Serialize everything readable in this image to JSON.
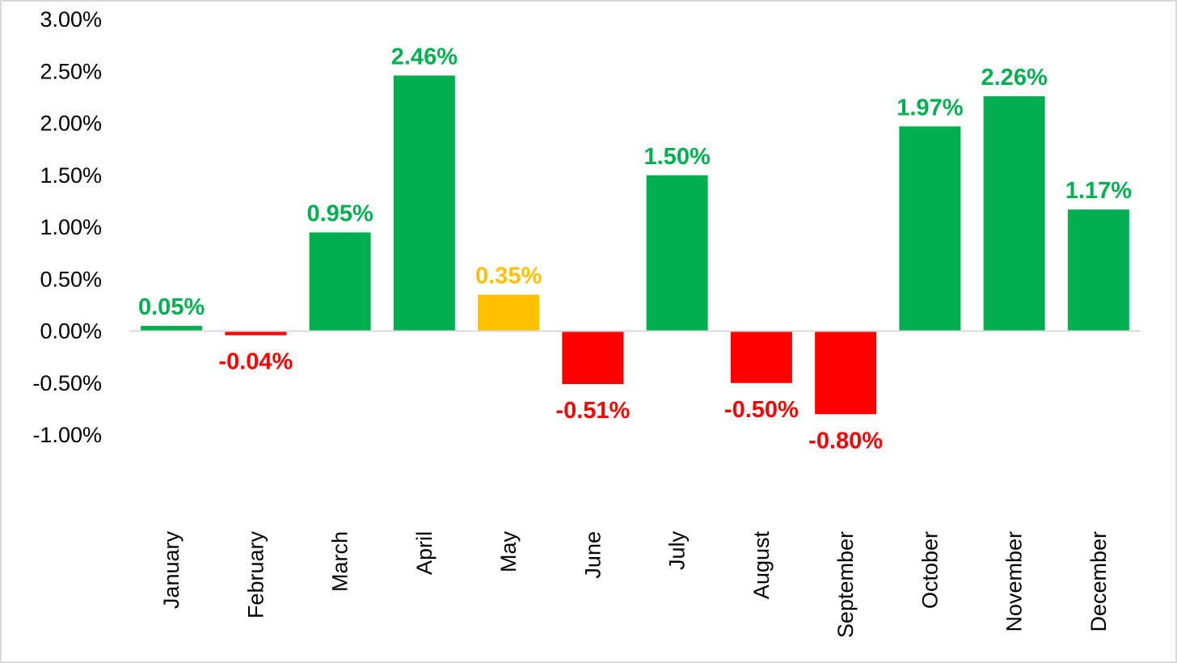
{
  "chart_data": {
    "type": "bar",
    "title": "",
    "xlabel": "",
    "ylabel": "",
    "categories": [
      "January",
      "February",
      "March",
      "April",
      "May",
      "June",
      "July",
      "August",
      "September",
      "October",
      "November",
      "December"
    ],
    "values": [
      0.05,
      -0.04,
      0.95,
      2.46,
      0.35,
      -0.51,
      1.5,
      -0.5,
      -0.8,
      1.97,
      2.26,
      1.17
    ],
    "data_labels": [
      "0.05%",
      "-0.04%",
      "0.95%",
      "2.46%",
      "0.35%",
      "-0.51%",
      "1.50%",
      "-0.50%",
      "-0.80%",
      "1.97%",
      "2.26%",
      "1.17%"
    ],
    "bar_colors": [
      "#00b050",
      "#ff0000",
      "#00b050",
      "#00b050",
      "#ffc000",
      "#ff0000",
      "#00b050",
      "#ff0000",
      "#ff0000",
      "#00b050",
      "#00b050",
      "#00b050"
    ],
    "ylim": [
      -1.0,
      3.0
    ],
    "yticks": [
      3.0,
      2.5,
      2.0,
      1.5,
      1.0,
      0.5,
      0.0,
      -0.5,
      -1.0
    ],
    "ytick_labels": [
      "3.00%",
      "2.50%",
      "2.00%",
      "1.50%",
      "1.00%",
      "0.50%",
      "0.00%",
      "-0.50%",
      "-1.00%"
    ],
    "grid": false,
    "legend": "none",
    "colors": {
      "positive": "#00b050",
      "negative": "#ff0000",
      "highlight": "#ffc000",
      "axis_line": "#d9d9d9",
      "frame_border": "#d9d9d9"
    }
  }
}
